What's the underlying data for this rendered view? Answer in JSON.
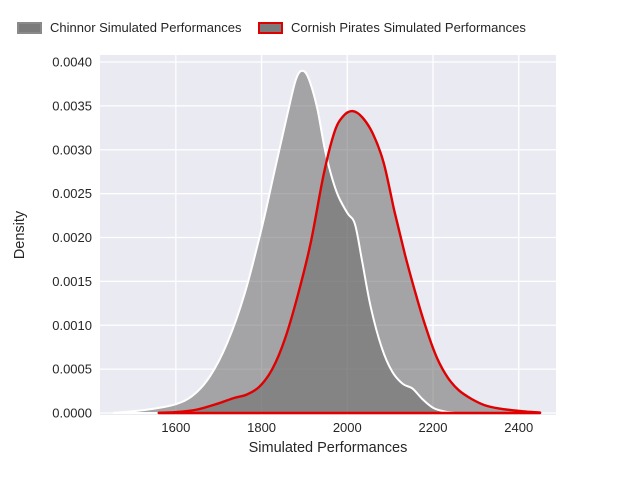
{
  "legend": {
    "items": [
      {
        "key": "chinnor",
        "label": "Chinnor Simulated Performances",
        "swatch_fill": "#7b7b7b",
        "swatch_border": "#8a8a8a"
      },
      {
        "key": "cornish",
        "label": "Cornish Pirates Simulated Performances",
        "swatch_fill": "#7b7b7b",
        "swatch_border": "#e00000"
      }
    ]
  },
  "chart_data": {
    "type": "area",
    "subtype": "kde-density",
    "title": "",
    "xlabel": "Simulated Performances",
    "ylabel": "Density",
    "xlim": [
      1423,
      2487
    ],
    "ylim": [
      0,
      0.00408
    ],
    "xticks": [
      1600,
      1800,
      2000,
      2200,
      2400
    ],
    "xtick_labels": [
      "1600",
      "1800",
      "2000",
      "2200",
      "2400"
    ],
    "yticks": [
      0.0,
      0.0005,
      0.001,
      0.0015,
      0.002,
      0.0025,
      0.003,
      0.0035,
      0.004
    ],
    "ytick_labels": [
      "0.0000",
      "0.0005",
      "0.0010",
      "0.0015",
      "0.0020",
      "0.0025",
      "0.0030",
      "0.0035",
      "0.0040"
    ],
    "grid": true,
    "legend_position": "top-outside",
    "colors": {
      "plot_background": "#eaeaf2",
      "gridline": "#ffffff",
      "text": "#262626",
      "density_fill": "#696969",
      "fill_opacity": 0.55,
      "chinnor_line": "#ffffff",
      "cornish_line": "#e00000"
    },
    "series": [
      {
        "name": "Chinnor Simulated Performances",
        "key": "chinnor",
        "peak": {
          "x": 1895,
          "density": 0.0039
        },
        "points": [
          [
            1455,
            2e-06
          ],
          [
            1500,
            2e-05
          ],
          [
            1550,
            5e-05
          ],
          [
            1600,
            0.0001
          ],
          [
            1640,
            0.0002
          ],
          [
            1680,
            0.00042
          ],
          [
            1720,
            0.0008
          ],
          [
            1760,
            0.00135
          ],
          [
            1800,
            0.0021
          ],
          [
            1830,
            0.00275
          ],
          [
            1860,
            0.0034
          ],
          [
            1880,
            0.0038
          ],
          [
            1895,
            0.0039
          ],
          [
            1910,
            0.00381
          ],
          [
            1930,
            0.00347
          ],
          [
            1950,
            0.00295
          ],
          [
            1975,
            0.00252
          ],
          [
            2000,
            0.00228
          ],
          [
            2018,
            0.00215
          ],
          [
            2035,
            0.00172
          ],
          [
            2055,
            0.0012
          ],
          [
            2080,
            0.00075
          ],
          [
            2105,
            0.00047
          ],
          [
            2130,
            0.00033
          ],
          [
            2152,
            0.00028
          ],
          [
            2175,
            0.00016
          ],
          [
            2200,
            6e-05
          ],
          [
            2225,
            2e-05
          ],
          [
            2248,
            3e-06
          ]
        ]
      },
      {
        "name": "Cornish Pirates Simulated Performances",
        "key": "cornish",
        "peak": {
          "x": 2012,
          "density": 0.00344
        },
        "points": [
          [
            1560,
            2e-06
          ],
          [
            1600,
            1e-05
          ],
          [
            1650,
            4e-05
          ],
          [
            1700,
            0.00011
          ],
          [
            1735,
            0.00017
          ],
          [
            1765,
            0.00021
          ],
          [
            1795,
            0.0003
          ],
          [
            1825,
            0.0005
          ],
          [
            1855,
            0.00085
          ],
          [
            1885,
            0.00135
          ],
          [
            1915,
            0.00195
          ],
          [
            1945,
            0.00272
          ],
          [
            1970,
            0.0032
          ],
          [
            1990,
            0.00338
          ],
          [
            2012,
            0.00344
          ],
          [
            2035,
            0.00337
          ],
          [
            2060,
            0.00318
          ],
          [
            2085,
            0.00285
          ],
          [
            2110,
            0.0023
          ],
          [
            2135,
            0.0018
          ],
          [
            2160,
            0.00135
          ],
          [
            2185,
            0.00095
          ],
          [
            2210,
            0.00062
          ],
          [
            2235,
            0.0004
          ],
          [
            2260,
            0.00026
          ],
          [
            2290,
            0.00016
          ],
          [
            2320,
            9e-05
          ],
          [
            2355,
            5e-05
          ],
          [
            2390,
            3e-05
          ],
          [
            2420,
            1.5e-05
          ],
          [
            2450,
            5e-06
          ]
        ]
      }
    ]
  }
}
